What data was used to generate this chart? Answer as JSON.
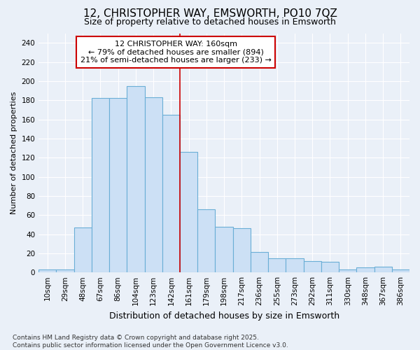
{
  "title1": "12, CHRISTOPHER WAY, EMSWORTH, PO10 7QZ",
  "title2": "Size of property relative to detached houses in Emsworth",
  "xlabel": "Distribution of detached houses by size in Emsworth",
  "ylabel": "Number of detached properties",
  "categories": [
    "10sqm",
    "29sqm",
    "48sqm",
    "67sqm",
    "86sqm",
    "104sqm",
    "123sqm",
    "142sqm",
    "161sqm",
    "179sqm",
    "198sqm",
    "217sqm",
    "236sqm",
    "255sqm",
    "273sqm",
    "292sqm",
    "311sqm",
    "330sqm",
    "348sqm",
    "367sqm",
    "386sqm"
  ],
  "values": [
    3,
    3,
    47,
    182,
    182,
    195,
    183,
    165,
    126,
    66,
    48,
    46,
    21,
    15,
    15,
    12,
    11,
    3,
    5,
    6,
    3
  ],
  "bar_color": "#cce0f5",
  "bar_edge_color": "#6aaed6",
  "annotation_text_line1": "12 CHRISTOPHER WAY: 160sqm",
  "annotation_text_line2": "← 79% of detached houses are smaller (894)",
  "annotation_text_line3": "21% of semi-detached houses are larger (233) →",
  "annotation_box_color": "white",
  "annotation_border_color": "#cc0000",
  "vline_color": "#cc0000",
  "vline_x_index": 8,
  "ylim": [
    0,
    250
  ],
  "yticks": [
    0,
    20,
    40,
    60,
    80,
    100,
    120,
    140,
    160,
    180,
    200,
    220,
    240
  ],
  "footnote_line1": "Contains HM Land Registry data © Crown copyright and database right 2025.",
  "footnote_line2": "Contains public sector information licensed under the Open Government Licence v3.0.",
  "bg_color": "#eaf0f8",
  "plot_bg_color": "#eaf0f8",
  "grid_color": "white",
  "title1_fontsize": 11,
  "title2_fontsize": 9,
  "xlabel_fontsize": 9,
  "ylabel_fontsize": 8,
  "tick_fontsize": 7.5,
  "annot_fontsize": 8,
  "footnote_fontsize": 6.5
}
